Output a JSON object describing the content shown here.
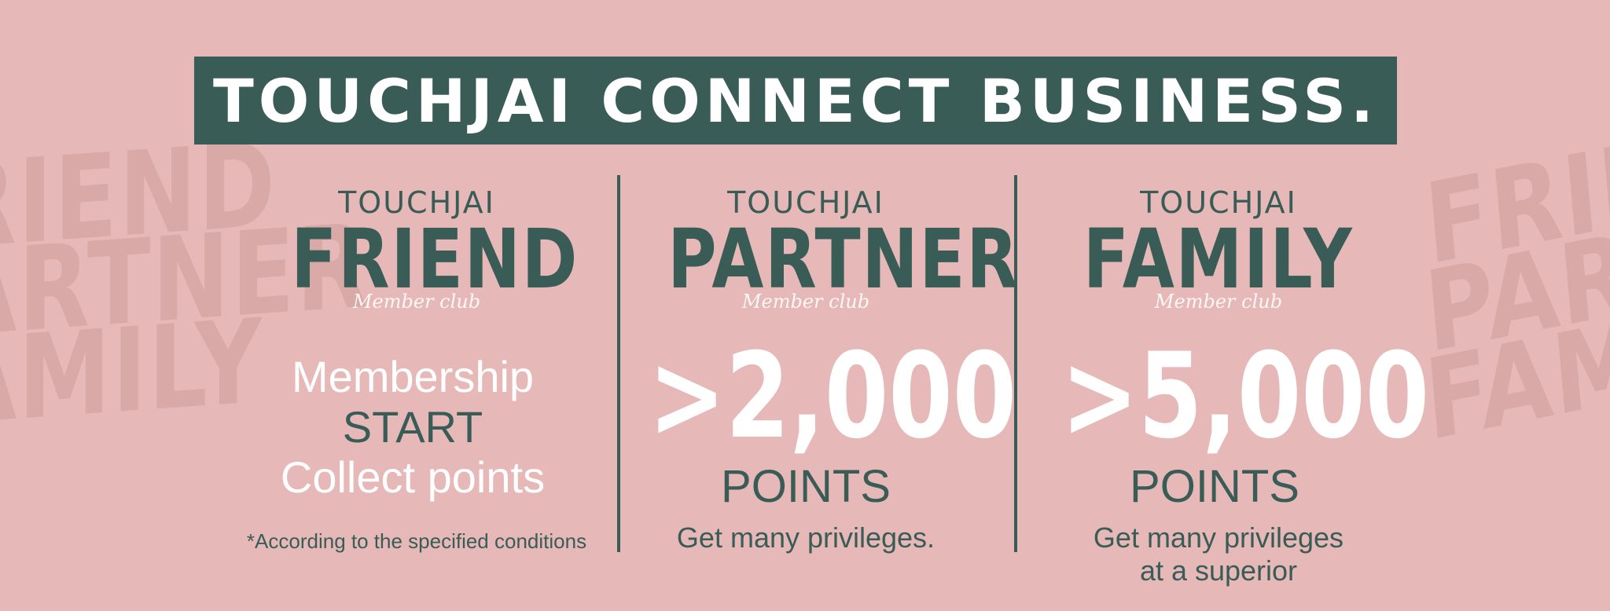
{
  "banner": {
    "title": "TOUCHJAI CONNECT BUSINESS.",
    "colors": {
      "background": "#e6b8b7",
      "accent": "#3a5c56",
      "text_light": "#ffffff"
    }
  },
  "watermark": {
    "left": [
      "RIEND",
      "ARTNER",
      "AMILY"
    ],
    "right": [
      "FRIE",
      "PARTN",
      "FAMI"
    ]
  },
  "tiers": [
    {
      "brand": "TOUCHJAI",
      "name": "FRIEND",
      "club": "Member club",
      "lines": [
        "Membership",
        "START",
        "Collect points"
      ],
      "note": "*According to the specified conditions"
    },
    {
      "brand": "TOUCHJAI",
      "name": "PARTNER",
      "club": "Member club",
      "threshold": ">2,000",
      "unit": "POINTS",
      "desc": "Get many privileges."
    },
    {
      "brand": "TOUCHJAI",
      "name": "FAMILY",
      "club": "Member club",
      "threshold": ">5,000",
      "unit": "POINTS",
      "desc_lines": [
        "Get many privileges",
        "at a superior"
      ]
    }
  ]
}
